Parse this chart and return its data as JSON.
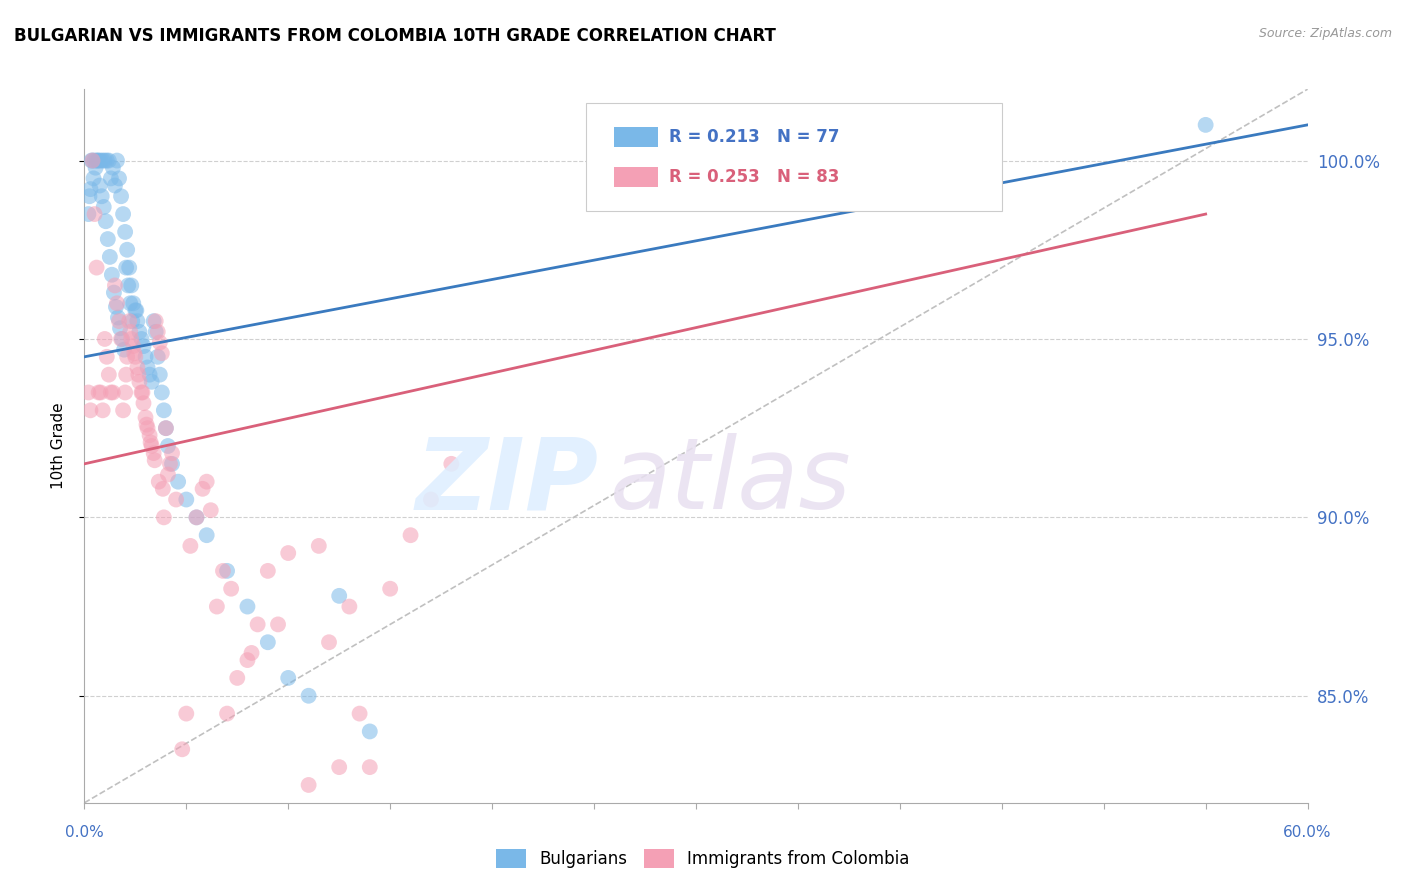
{
  "title": "BULGARIAN VS IMMIGRANTS FROM COLOMBIA 10TH GRADE CORRELATION CHART",
  "source": "Source: ZipAtlas.com",
  "ylabel": "10th Grade",
  "blue_R": 0.213,
  "blue_N": 77,
  "pink_R": 0.253,
  "pink_N": 83,
  "blue_color": "#7ab8e8",
  "pink_color": "#f4a0b5",
  "blue_line_color": "#3a7abf",
  "pink_line_color": "#d9607a",
  "legend_label_blue": "Bulgarians",
  "legend_label_pink": "Immigrants from Colombia",
  "xlim": [
    0.0,
    60.0
  ],
  "ylim_bottom": 82.0,
  "ylim_top": 102.0,
  "yticks": [
    85.0,
    90.0,
    95.0,
    100.0
  ],
  "blue_trend_x0": 0.0,
  "blue_trend_y0": 94.5,
  "blue_trend_x1": 60.0,
  "blue_trend_y1": 101.0,
  "pink_trend_x0": 0.0,
  "pink_trend_y0": 91.5,
  "pink_trend_x1": 55.0,
  "pink_trend_y1": 98.5,
  "blue_scatter_x": [
    0.2,
    0.3,
    0.4,
    0.5,
    0.6,
    0.7,
    0.8,
    0.9,
    1.0,
    1.1,
    1.2,
    1.3,
    1.4,
    1.5,
    1.6,
    1.7,
    1.8,
    1.9,
    2.0,
    2.1,
    2.2,
    2.3,
    2.4,
    2.5,
    2.6,
    2.7,
    2.8,
    2.9,
    3.0,
    3.1,
    3.2,
    3.3,
    3.4,
    3.5,
    3.6,
    3.7,
    3.8,
    3.9,
    4.0,
    4.1,
    4.3,
    4.6,
    5.0,
    5.5,
    6.0,
    7.0,
    8.0,
    9.0,
    10.0,
    11.0,
    12.5,
    14.0,
    0.25,
    0.35,
    0.45,
    0.55,
    0.65,
    0.75,
    0.85,
    0.95,
    1.05,
    1.15,
    1.25,
    1.35,
    1.45,
    1.55,
    1.65,
    1.75,
    1.85,
    1.95,
    2.05,
    2.15,
    2.25,
    2.35,
    2.55,
    55.0
  ],
  "blue_scatter_y": [
    98.5,
    99.2,
    100.0,
    100.0,
    100.0,
    100.0,
    100.0,
    100.0,
    100.0,
    100.0,
    100.0,
    99.5,
    99.8,
    99.3,
    100.0,
    99.5,
    99.0,
    98.5,
    98.0,
    97.5,
    97.0,
    96.5,
    96.0,
    95.8,
    95.5,
    95.2,
    95.0,
    94.8,
    94.5,
    94.2,
    94.0,
    93.8,
    95.5,
    95.2,
    94.5,
    94.0,
    93.5,
    93.0,
    92.5,
    92.0,
    91.5,
    91.0,
    90.5,
    90.0,
    89.5,
    88.5,
    87.5,
    86.5,
    85.5,
    85.0,
    87.8,
    84.0,
    99.0,
    100.0,
    99.5,
    99.8,
    100.0,
    99.3,
    99.0,
    98.7,
    98.3,
    97.8,
    97.3,
    96.8,
    96.3,
    95.9,
    95.6,
    95.3,
    95.0,
    94.7,
    97.0,
    96.5,
    96.0,
    95.5,
    95.8,
    101.0
  ],
  "pink_scatter_x": [
    0.2,
    0.3,
    0.4,
    0.5,
    0.6,
    0.7,
    0.8,
    0.9,
    1.0,
    1.1,
    1.2,
    1.3,
    1.4,
    1.5,
    1.6,
    1.7,
    1.8,
    1.9,
    2.0,
    2.1,
    2.2,
    2.3,
    2.4,
    2.5,
    2.6,
    2.7,
    2.8,
    2.9,
    3.0,
    3.1,
    3.2,
    3.3,
    3.4,
    3.5,
    3.6,
    3.7,
    3.8,
    3.9,
    4.0,
    4.2,
    4.5,
    4.8,
    5.0,
    5.5,
    6.0,
    6.5,
    7.0,
    7.5,
    8.0,
    8.5,
    9.0,
    10.0,
    11.0,
    12.0,
    13.0,
    14.0,
    15.0,
    16.0,
    17.0,
    18.0,
    2.05,
    2.25,
    2.45,
    2.65,
    2.85,
    3.05,
    3.25,
    3.45,
    3.65,
    3.85,
    4.1,
    4.3,
    5.2,
    6.2,
    7.2,
    8.2,
    11.5,
    12.5,
    5.8,
    6.8,
    9.5,
    13.5
  ],
  "pink_scatter_y": [
    93.5,
    93.0,
    100.0,
    98.5,
    97.0,
    93.5,
    93.5,
    93.0,
    95.0,
    94.5,
    94.0,
    93.5,
    93.5,
    96.5,
    96.0,
    95.5,
    95.0,
    93.0,
    93.5,
    94.5,
    95.5,
    95.0,
    94.8,
    94.5,
    94.2,
    93.8,
    93.5,
    93.2,
    92.8,
    92.5,
    92.3,
    92.0,
    91.8,
    95.5,
    95.2,
    94.9,
    94.6,
    90.0,
    92.5,
    91.5,
    90.5,
    83.5,
    84.5,
    90.0,
    91.0,
    87.5,
    84.5,
    85.5,
    86.0,
    87.0,
    88.5,
    89.0,
    82.5,
    86.5,
    87.5,
    83.0,
    88.0,
    89.5,
    90.5,
    91.5,
    94.0,
    95.2,
    94.6,
    94.0,
    93.5,
    92.6,
    92.1,
    91.6,
    91.0,
    90.8,
    91.2,
    91.8,
    89.2,
    90.2,
    88.0,
    86.2,
    89.2,
    83.0,
    90.8,
    88.5,
    87.0,
    84.5
  ]
}
